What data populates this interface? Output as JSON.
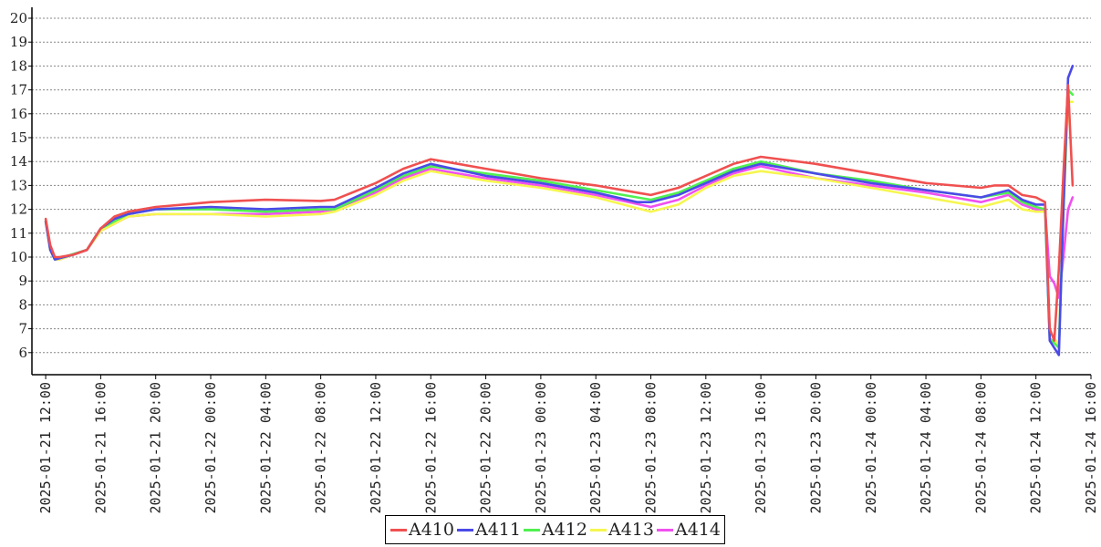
{
  "chart_data": {
    "type": "line",
    "title": "",
    "xlabel": "",
    "ylabel": "",
    "ylim": [
      5,
      20
    ],
    "yticks": [
      6,
      7,
      8,
      9,
      10,
      11,
      12,
      13,
      14,
      15,
      16,
      17,
      18,
      19,
      20
    ],
    "xlim": [
      "2025-01-21 11:00",
      "2025-01-24 16:00"
    ],
    "xtick_labels": [
      "2025-01-21 12:00",
      "2025-01-21 16:00",
      "2025-01-21 20:00",
      "2025-01-22 00:00",
      "2025-01-22 04:00",
      "2025-01-22 08:00",
      "2025-01-22 12:00",
      "2025-01-22 16:00",
      "2025-01-22 20:00",
      "2025-01-23 00:00",
      "2025-01-23 04:00",
      "2025-01-23 08:00",
      "2025-01-23 12:00",
      "2025-01-23 16:00",
      "2025-01-23 20:00",
      "2025-01-24 00:00",
      "2025-01-24 04:00",
      "2025-01-24 08:00",
      "2025-01-24 12:00",
      "2025-01-24 16:00"
    ],
    "grid": "horizontal dotted",
    "legend_position": "bottom-center",
    "series": [
      {
        "name": "A410",
        "color": "#f05050",
        "x": [
          "2025-01-21 12:00",
          "2025-01-21 12:20",
          "2025-01-21 12:40",
          "2025-01-21 13:00",
          "2025-01-21 14:00",
          "2025-01-21 15:00",
          "2025-01-21 16:00",
          "2025-01-21 17:00",
          "2025-01-21 18:00",
          "2025-01-21 20:00",
          "2025-01-21 22:00",
          "2025-01-22 00:00",
          "2025-01-22 04:00",
          "2025-01-22 08:00",
          "2025-01-22 09:00",
          "2025-01-22 12:00",
          "2025-01-22 14:00",
          "2025-01-22 15:00",
          "2025-01-22 16:00",
          "2025-01-22 18:00",
          "2025-01-22 20:00",
          "2025-01-23 00:00",
          "2025-01-23 04:00",
          "2025-01-23 07:00",
          "2025-01-23 08:00",
          "2025-01-23 10:00",
          "2025-01-23 12:00",
          "2025-01-23 14:00",
          "2025-01-23 16:00",
          "2025-01-23 20:00",
          "2025-01-24 00:00",
          "2025-01-24 04:00",
          "2025-01-24 08:00",
          "2025-01-24 09:00",
          "2025-01-24 10:00",
          "2025-01-24 11:00",
          "2025-01-24 12:00",
          "2025-01-24 12:40",
          "2025-01-24 13:00",
          "2025-01-24 13:20",
          "2025-01-24 13:40",
          "2025-01-24 14:00",
          "2025-01-24 14:20",
          "2025-01-24 14:40"
        ],
        "values": [
          11.6,
          10.5,
          10.0,
          10.0,
          10.1,
          10.3,
          11.2,
          11.7,
          11.9,
          12.1,
          12.2,
          12.3,
          12.4,
          12.35,
          12.4,
          13.1,
          13.7,
          13.9,
          14.1,
          13.9,
          13.7,
          13.3,
          13.0,
          12.7,
          12.6,
          12.9,
          13.4,
          13.9,
          14.2,
          13.9,
          13.5,
          13.1,
          12.9,
          13.0,
          13.0,
          12.6,
          12.5,
          12.3,
          7.0,
          6.5,
          9.5,
          13.5,
          17.2,
          13.0
        ]
      },
      {
        "name": "A411",
        "color": "#4a4ae8",
        "x": [
          "2025-01-21 12:00",
          "2025-01-21 12:20",
          "2025-01-21 12:40",
          "2025-01-21 13:00",
          "2025-01-21 14:00",
          "2025-01-21 15:00",
          "2025-01-21 16:00",
          "2025-01-21 17:00",
          "2025-01-21 18:00",
          "2025-01-21 20:00",
          "2025-01-22 00:00",
          "2025-01-22 04:00",
          "2025-01-22 08:00",
          "2025-01-22 09:00",
          "2025-01-22 12:00",
          "2025-01-22 14:00",
          "2025-01-22 16:00",
          "2025-01-22 20:00",
          "2025-01-23 00:00",
          "2025-01-23 04:00",
          "2025-01-23 07:00",
          "2025-01-23 08:00",
          "2025-01-23 10:00",
          "2025-01-23 12:00",
          "2025-01-23 14:00",
          "2025-01-23 16:00",
          "2025-01-23 20:00",
          "2025-01-24 00:00",
          "2025-01-24 04:00",
          "2025-01-24 08:00",
          "2025-01-24 10:00",
          "2025-01-24 11:00",
          "2025-01-24 12:00",
          "2025-01-24 12:40",
          "2025-01-24 13:00",
          "2025-01-24 13:40",
          "2025-01-24 14:00",
          "2025-01-24 14:20",
          "2025-01-24 14:40"
        ],
        "values": [
          11.5,
          10.3,
          9.9,
          9.95,
          10.1,
          10.3,
          11.2,
          11.6,
          11.8,
          12.0,
          12.1,
          12.0,
          12.1,
          12.1,
          12.9,
          13.5,
          13.9,
          13.4,
          13.1,
          12.7,
          12.3,
          12.3,
          12.6,
          13.1,
          13.6,
          13.9,
          13.5,
          13.1,
          12.8,
          12.5,
          12.8,
          12.4,
          12.2,
          12.2,
          6.5,
          5.9,
          12.0,
          17.5,
          18.0
        ]
      },
      {
        "name": "A412",
        "color": "#50f050",
        "x": [
          "2025-01-21 12:00",
          "2025-01-21 12:20",
          "2025-01-21 12:40",
          "2025-01-21 13:00",
          "2025-01-21 15:00",
          "2025-01-21 16:00",
          "2025-01-21 18:00",
          "2025-01-21 20:00",
          "2025-01-22 00:00",
          "2025-01-22 04:00",
          "2025-01-22 08:00",
          "2025-01-22 09:00",
          "2025-01-22 12:00",
          "2025-01-22 14:00",
          "2025-01-22 16:00",
          "2025-01-22 20:00",
          "2025-01-23 00:00",
          "2025-01-23 04:00",
          "2025-01-23 08:00",
          "2025-01-23 10:00",
          "2025-01-23 12:00",
          "2025-01-23 14:00",
          "2025-01-23 16:00",
          "2025-01-23 20:00",
          "2025-01-24 00:00",
          "2025-01-24 04:00",
          "2025-01-24 08:00",
          "2025-01-24 10:00",
          "2025-01-24 11:00",
          "2025-01-24 12:00",
          "2025-01-24 12:40",
          "2025-01-24 13:00",
          "2025-01-24 13:40",
          "2025-01-24 14:00",
          "2025-01-24 14:20",
          "2025-01-24 14:40"
        ],
        "values": [
          11.5,
          10.3,
          9.9,
          9.95,
          10.3,
          11.2,
          11.8,
          12.0,
          12.0,
          11.9,
          12.0,
          12.0,
          12.8,
          13.4,
          13.8,
          13.5,
          13.2,
          12.8,
          12.4,
          12.7,
          13.2,
          13.7,
          14.0,
          13.5,
          13.2,
          12.8,
          12.5,
          12.7,
          12.3,
          12.1,
          12.0,
          6.6,
          6.2,
          12.0,
          17.0,
          16.8
        ]
      },
      {
        "name": "A413",
        "color": "#f6f650",
        "x": [
          "2025-01-21 12:00",
          "2025-01-21 12:20",
          "2025-01-21 12:40",
          "2025-01-21 13:00",
          "2025-01-21 15:00",
          "2025-01-21 16:00",
          "2025-01-21 18:00",
          "2025-01-21 20:00",
          "2025-01-22 00:00",
          "2025-01-22 04:00",
          "2025-01-22 08:00",
          "2025-01-22 09:00",
          "2025-01-22 12:00",
          "2025-01-22 14:00",
          "2025-01-22 16:00",
          "2025-01-22 20:00",
          "2025-01-23 00:00",
          "2025-01-23 04:00",
          "2025-01-23 08:00",
          "2025-01-23 10:00",
          "2025-01-23 12:00",
          "2025-01-23 14:00",
          "2025-01-23 16:00",
          "2025-01-23 20:00",
          "2025-01-24 00:00",
          "2025-01-24 04:00",
          "2025-01-24 08:00",
          "2025-01-24 10:00",
          "2025-01-24 11:00",
          "2025-01-24 12:00",
          "2025-01-24 12:40",
          "2025-01-24 13:00",
          "2025-01-24 13:40",
          "2025-01-24 14:00",
          "2025-01-24 14:20",
          "2025-01-24 14:40"
        ],
        "values": [
          11.5,
          10.3,
          9.9,
          9.9,
          10.3,
          11.1,
          11.7,
          11.8,
          11.8,
          11.7,
          11.8,
          11.9,
          12.6,
          13.2,
          13.6,
          13.2,
          12.9,
          12.5,
          11.9,
          12.2,
          12.9,
          13.4,
          13.6,
          13.3,
          12.9,
          12.5,
          12.1,
          12.4,
          12.0,
          11.9,
          11.9,
          6.9,
          6.3,
          11.8,
          16.5,
          16.5
        ]
      },
      {
        "name": "A414",
        "color": "#f050f0",
        "x": [
          "2025-01-21 12:00",
          "2025-01-21 12:20",
          "2025-01-21 12:40",
          "2025-01-21 13:00",
          "2025-01-21 15:00",
          "2025-01-21 16:00",
          "2025-01-21 18:00",
          "2025-01-21 20:00",
          "2025-01-22 00:00",
          "2025-01-22 04:00",
          "2025-01-22 08:00",
          "2025-01-22 09:00",
          "2025-01-22 12:00",
          "2025-01-22 14:00",
          "2025-01-22 16:00",
          "2025-01-22 20:00",
          "2025-01-23 00:00",
          "2025-01-23 04:00",
          "2025-01-23 08:00",
          "2025-01-23 10:00",
          "2025-01-23 12:00",
          "2025-01-23 14:00",
          "2025-01-23 16:00",
          "2025-01-23 20:00",
          "2025-01-24 00:00",
          "2025-01-24 04:00",
          "2025-01-24 08:00",
          "2025-01-24 10:00",
          "2025-01-24 11:00",
          "2025-01-24 12:00",
          "2025-01-24 12:40",
          "2025-01-24 13:00",
          "2025-01-24 13:20",
          "2025-01-24 13:40",
          "2025-01-24 14:00",
          "2025-01-24 14:20",
          "2025-01-24 14:40"
        ],
        "values": [
          11.5,
          10.3,
          9.9,
          9.9,
          10.3,
          11.1,
          11.7,
          11.8,
          11.8,
          11.8,
          11.9,
          12.0,
          12.7,
          13.3,
          13.7,
          13.3,
          13.0,
          12.6,
          12.1,
          12.4,
          13.0,
          13.5,
          13.8,
          13.3,
          13.0,
          12.7,
          12.3,
          12.6,
          12.2,
          12.0,
          12.0,
          9.2,
          8.9,
          8.3,
          10.0,
          12.0,
          12.5
        ]
      }
    ]
  },
  "legend": {
    "items": [
      {
        "label": "A410",
        "color": "#f05050"
      },
      {
        "label": "A411",
        "color": "#4a4ae8"
      },
      {
        "label": "A412",
        "color": "#50f050"
      },
      {
        "label": "A413",
        "color": "#f6f650"
      },
      {
        "label": "A414",
        "color": "#f050f0"
      }
    ]
  }
}
